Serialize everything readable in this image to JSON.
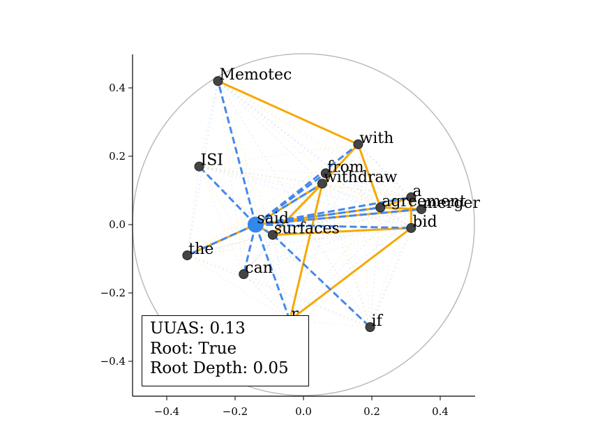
{
  "chart_data": {
    "type": "scatter",
    "title": "",
    "xlabel": "",
    "ylabel": "",
    "xlim": [
      -0.5,
      0.5
    ],
    "ylim": [
      -0.5,
      0.5
    ],
    "x_ticks": [
      -0.4,
      -0.2,
      0.0,
      0.2,
      0.4
    ],
    "y_ticks": [
      -0.4,
      -0.2,
      0.0,
      0.2,
      0.4
    ],
    "x_tick_labels": [
      "−0.4",
      "−0.2",
      "0.0",
      "0.2",
      "0.4"
    ],
    "y_tick_labels": [
      "−0.4",
      "−0.2",
      "0.0",
      "0.2",
      "0.4"
    ],
    "circle_radius": 0.5,
    "grid": false,
    "root": "said",
    "colors": {
      "gold": "#f5a800",
      "blue": "#4488ee",
      "node": "#444444",
      "root": "#3388ee",
      "circle": "#bbbbbb"
    },
    "nodes": [
      {
        "word": "said",
        "x": -0.14,
        "y": 0.0
      },
      {
        "word": "Memotec",
        "x": -0.25,
        "y": 0.42
      },
      {
        "word": "with",
        "x": 0.16,
        "y": 0.235
      },
      {
        "word": "ISI",
        "x": -0.305,
        "y": 0.17
      },
      {
        "word": "from",
        "x": 0.065,
        "y": 0.15
      },
      {
        "word": "withdraw",
        "x": 0.055,
        "y": 0.12
      },
      {
        "word": "a",
        "x": 0.315,
        "y": 0.08
      },
      {
        "word": "agreement",
        "x": 0.225,
        "y": 0.05
      },
      {
        "word": "merger",
        "x": 0.345,
        "y": 0.045
      },
      {
        "word": "bid",
        "x": 0.315,
        "y": -0.01
      },
      {
        "word": "surfaces",
        "x": -0.09,
        "y": -0.03
      },
      {
        "word": "the",
        "x": -0.34,
        "y": -0.09
      },
      {
        "word": "can",
        "x": -0.175,
        "y": -0.145
      },
      {
        "word": "if",
        "x": 0.195,
        "y": -0.3
      },
      {
        "word": "r",
        "x": -0.04,
        "y": -0.28
      }
    ],
    "gold_edges": [
      [
        "Memotec",
        "with"
      ],
      [
        "with",
        "withdraw"
      ],
      [
        "with",
        "agreement"
      ],
      [
        "withdraw",
        "said"
      ],
      [
        "withdraw",
        "surfaces"
      ],
      [
        "withdraw",
        "r"
      ],
      [
        "said",
        "the"
      ],
      [
        "said",
        "agreement"
      ],
      [
        "said",
        "merger"
      ],
      [
        "surfaces",
        "bid"
      ],
      [
        "agreement",
        "a"
      ],
      [
        "a",
        "bid"
      ],
      [
        "bid",
        "r"
      ],
      [
        "agreement",
        "merger"
      ],
      [
        "said",
        "surfaces"
      ]
    ],
    "blue_edges": [
      [
        "said",
        "Memotec"
      ],
      [
        "said",
        "with"
      ],
      [
        "said",
        "ISI"
      ],
      [
        "said",
        "from"
      ],
      [
        "said",
        "withdraw"
      ],
      [
        "said",
        "a"
      ],
      [
        "said",
        "agreement"
      ],
      [
        "said",
        "merger"
      ],
      [
        "said",
        "bid"
      ],
      [
        "said",
        "the"
      ],
      [
        "said",
        "can"
      ],
      [
        "said",
        "r"
      ],
      [
        "said",
        "surfaces"
      ],
      [
        "surfaces",
        "if"
      ]
    ]
  },
  "info_box": {
    "uuas": "UUAS: 0.13",
    "root": "Root: True",
    "root_depth": "Root Depth: 0.05"
  }
}
